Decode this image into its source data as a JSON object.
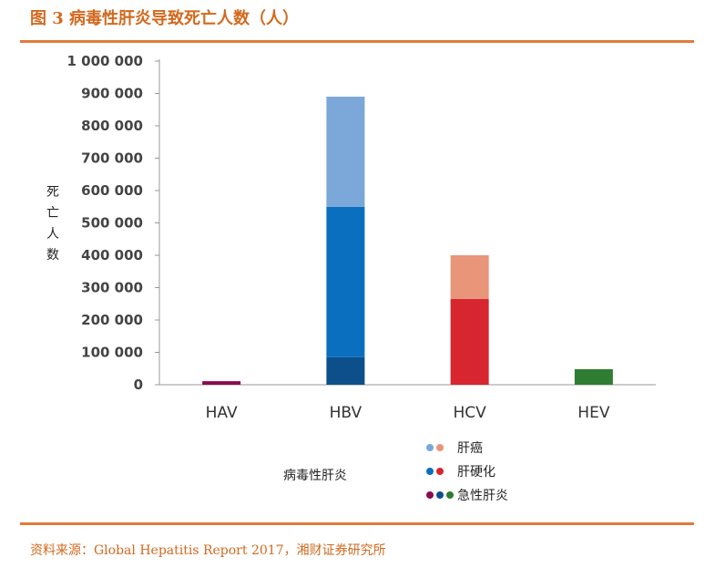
{
  "header": {
    "title": "图 3  病毒性肝炎导致死亡人数（人）"
  },
  "footer": {
    "source": "资料来源：Global Hepatitis Report 2017，湘财证券研究所"
  },
  "chart_data": {
    "type": "bar",
    "stacked": true,
    "categories": [
      "HAV",
      "HBV",
      "HCV",
      "HEV"
    ],
    "ylabel": "死亡人数",
    "xlabel": "病毒性肝炎",
    "ylim": [
      0,
      1000000
    ],
    "yticks": [
      "0",
      "100 000",
      "200 000",
      "300 000",
      "400 000",
      "500 000",
      "600 000",
      "700 000",
      "800 000",
      "900 000",
      "1 000 000"
    ],
    "ytick_values": [
      0,
      100000,
      200000,
      300000,
      400000,
      500000,
      600000,
      700000,
      800000,
      900000,
      1000000
    ],
    "grid": false,
    "stacks": [
      {
        "category": "HAV",
        "segments": [
          {
            "value": 11000,
            "color": "#8b0a50"
          }
        ]
      },
      {
        "category": "HBV",
        "segments": [
          {
            "value": 85000,
            "color": "#0d4f8b"
          },
          {
            "value": 465000,
            "color": "#0b6fbf"
          },
          {
            "value": 340000,
            "color": "#7ba7d9"
          }
        ]
      },
      {
        "category": "HCV",
        "segments": [
          {
            "value": 265000,
            "color": "#d7262f"
          },
          {
            "value": 135000,
            "color": "#e8957a"
          }
        ]
      },
      {
        "category": "HEV",
        "segments": [
          {
            "value": 48000,
            "color": "#2e7d32"
          }
        ]
      }
    ],
    "legend": [
      {
        "label": "肝癌",
        "colors": [
          "#7ba7d9",
          "#e8957a"
        ]
      },
      {
        "label": "肝硬化",
        "colors": [
          "#0b6fbf",
          "#d7262f"
        ]
      },
      {
        "label": "急性肝炎",
        "colors": [
          "#8b0a50",
          "#0d4f8b",
          "#2e7d32"
        ]
      }
    ]
  }
}
